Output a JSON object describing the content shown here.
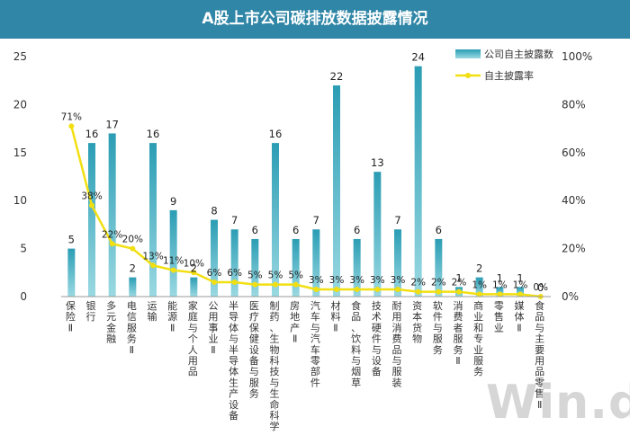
{
  "chart_data": {
    "type": "bar",
    "title": "A股上市公司碳排放数据披露情况",
    "categories": [
      "保险Ⅱ",
      "银行",
      "多元金融",
      "电信服务Ⅱ",
      "运输",
      "能源Ⅱ",
      "家庭与个人用品",
      "公用事业Ⅱ",
      "半导体与半导体生产设备",
      "医疗保健设备与服务",
      "制药、生物科技与生命科学",
      "房地产Ⅱ",
      "汽车与汽车零部件",
      "材料Ⅱ",
      "食品、饮料与烟草",
      "技术硬件与设备",
      "耐用消费品与服装",
      "资本货物",
      "软件与服务",
      "消费者服务Ⅱ",
      "商业和专业服务",
      "零售业",
      "媒体Ⅱ",
      "食品与主要用品零售Ⅱ"
    ],
    "series": [
      {
        "name": "公司自主披露数",
        "axis": "left",
        "values": [
          5,
          16,
          17,
          2,
          16,
          9,
          2,
          8,
          7,
          6,
          16,
          6,
          7,
          22,
          6,
          13,
          7,
          24,
          6,
          1,
          2,
          1,
          1,
          0
        ]
      },
      {
        "name": "自主披露率",
        "axis": "right",
        "values": [
          71,
          38,
          22,
          20,
          13,
          11,
          10,
          6,
          6,
          5,
          5,
          5,
          3,
          3,
          3,
          3,
          3,
          2,
          2,
          2,
          1,
          1,
          1,
          0
        ]
      }
    ],
    "bar_labels": [
      "5",
      "16",
      "17",
      "2",
      "16",
      "9",
      "2",
      "8",
      "7",
      "6",
      "16",
      "6",
      "7",
      "22",
      "6",
      "13",
      "7",
      "24",
      "6",
      "1",
      "2",
      "1",
      "1",
      "0"
    ],
    "line_labels": [
      "71%",
      "38%",
      "22%",
      "20%",
      "13%",
      "11%",
      "10%",
      "6%",
      "6%",
      "5%",
      "5%",
      "5%",
      "3%",
      "3%",
      "3%",
      "3%",
      "3%",
      "2%",
      "2%",
      "2%",
      "1%",
      "1%",
      "1%",
      "0%"
    ],
    "y_left": {
      "min": 0,
      "max": 25,
      "ticks": [
        "0",
        "5",
        "10",
        "15",
        "20",
        "25"
      ]
    },
    "y_right": {
      "min": 0,
      "max": 100,
      "ticks": [
        "0%",
        "20%",
        "40%",
        "60%",
        "80%",
        "100%"
      ]
    },
    "legend": {
      "position": "top-right",
      "bar_label": "公司自主披露数",
      "line_label": "自主披露率"
    },
    "colors": {
      "title_bg": "#2f86a6",
      "bar_dark": "#2fa2b8",
      "bar_light": "#8fd4df",
      "line": "#f2df12",
      "axis_text": "#333333",
      "grid": "#e3e3e3"
    }
  },
  "watermark": "Win.d"
}
